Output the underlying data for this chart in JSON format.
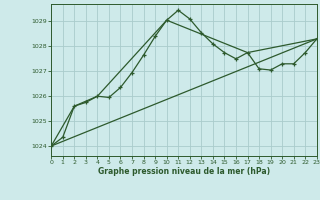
{
  "title": "Graphe pression niveau de la mer (hPa)",
  "background_color": "#ceeaea",
  "grid_color": "#aacccc",
  "line_color": "#2d5a2d",
  "x_min": 0,
  "x_max": 23,
  "y_min": 1023.6,
  "y_max": 1029.7,
  "yticks": [
    1024,
    1025,
    1026,
    1027,
    1028,
    1029
  ],
  "xticks": [
    0,
    1,
    2,
    3,
    4,
    5,
    6,
    7,
    8,
    9,
    10,
    11,
    12,
    13,
    14,
    15,
    16,
    17,
    18,
    19,
    20,
    21,
    22,
    23
  ],
  "series1_x": [
    0,
    1,
    2,
    3,
    4,
    5,
    6,
    7,
    8,
    9,
    10,
    11,
    12,
    13,
    14,
    15,
    16,
    17,
    18,
    19,
    20,
    21,
    22,
    23
  ],
  "series1_y": [
    1024.0,
    1024.35,
    1025.6,
    1025.75,
    1026.0,
    1025.95,
    1026.35,
    1026.95,
    1027.65,
    1028.4,
    1029.05,
    1029.45,
    1029.1,
    1028.55,
    1028.1,
    1027.75,
    1027.5,
    1027.75,
    1027.1,
    1027.05,
    1027.3,
    1027.3,
    1027.75,
    1028.3
  ],
  "series2_x": [
    0,
    2,
    4,
    10,
    17,
    23
  ],
  "series2_y": [
    1024.0,
    1025.6,
    1026.0,
    1029.05,
    1027.75,
    1028.3
  ],
  "series3_x": [
    0,
    23
  ],
  "series3_y": [
    1024.0,
    1028.3
  ]
}
